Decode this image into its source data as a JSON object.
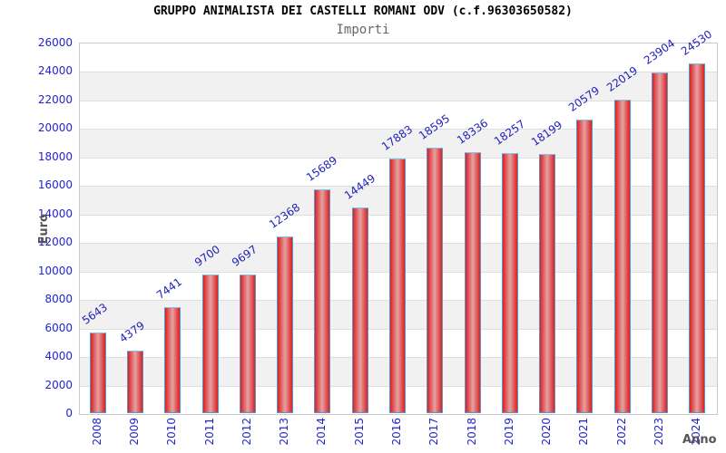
{
  "chart_data": {
    "type": "bar",
    "title": "GRUPPO ANIMALISTA DEI CASTELLI ROMANI ODV (c.f.96303650582)",
    "subtitle": "Importi",
    "xlabel": "Anno",
    "ylabel": "Euro",
    "categories": [
      "2008",
      "2009",
      "2010",
      "2011",
      "2012",
      "2013",
      "2014",
      "2015",
      "2016",
      "2017",
      "2018",
      "2019",
      "2020",
      "2021",
      "2022",
      "2023",
      "2024"
    ],
    "values": [
      5643,
      4379,
      7441,
      9700,
      9697,
      12368,
      15689,
      14449,
      17883,
      18595,
      18336,
      18257,
      18199,
      20579,
      22019,
      23904,
      24530
    ],
    "ylim": [
      0,
      26000
    ],
    "ytick_step": 2000,
    "grid": true,
    "legend": false,
    "band_stripes": true,
    "bar_value_labels_rotated": true,
    "x_tick_labels_rotated": true
  },
  "colors": {
    "bar_edge": "#de2020",
    "bar_center": "#e4a2a2",
    "bar_border": "#4f9bd8",
    "tick_label_blue": "#2323cc",
    "value_label_blue": "#2222bb",
    "axis_title_gray": "#555555",
    "subtitle_gray": "#666666",
    "band_gray": "#f1f1f1",
    "band_white": "#ffffff",
    "grid_line": "#dedede",
    "plot_border": "#c9c9c9",
    "title_black": "#000000"
  }
}
